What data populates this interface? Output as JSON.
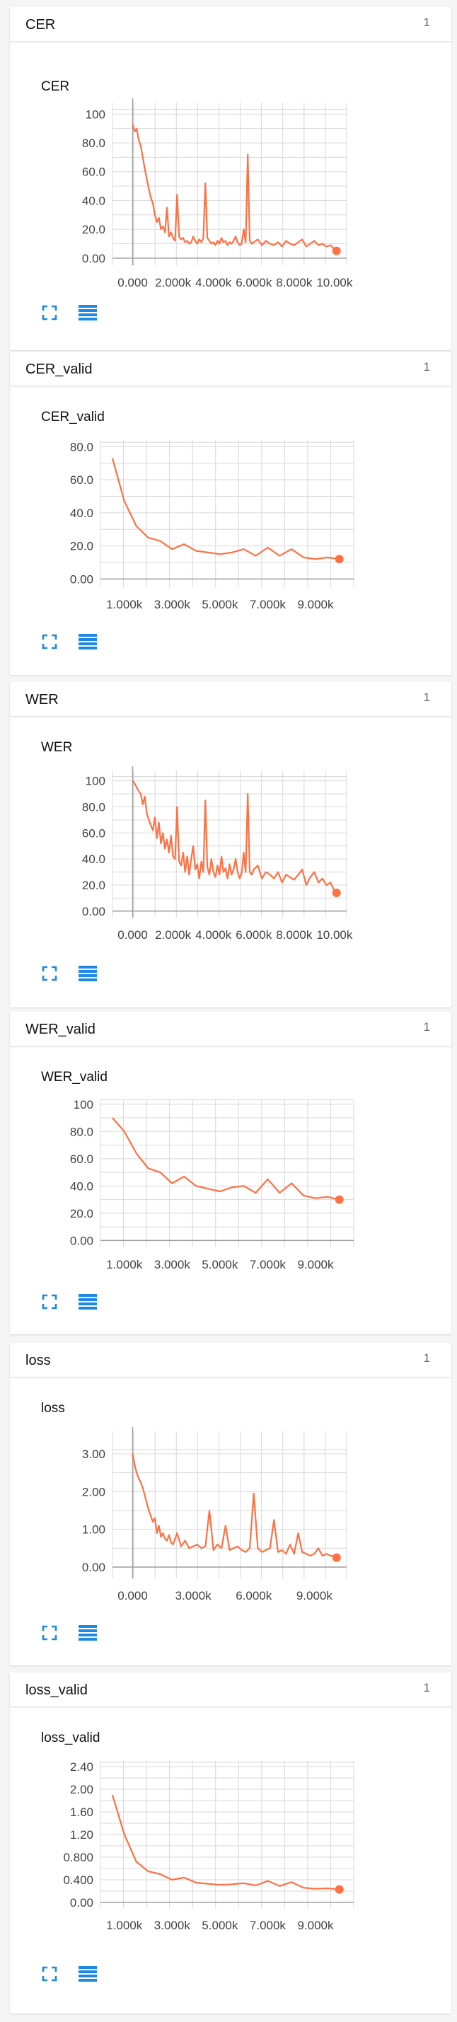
{
  "colors": {
    "line": "#ff7043",
    "grid": "#d8d8d8",
    "axis": "#9e9e9e",
    "icon": "#1e88e5"
  },
  "cards": [
    {
      "name": "CER",
      "count": "1",
      "chart_title": "CER",
      "icons": [
        "expand-icon",
        "list-icon"
      ]
    },
    {
      "name": "CER_valid",
      "count": "1",
      "chart_title": "CER_valid",
      "icons": [
        "expand-icon",
        "list-icon"
      ]
    },
    {
      "name": "WER",
      "count": "1",
      "chart_title": "WER",
      "icons": [
        "expand-icon",
        "list-icon"
      ]
    },
    {
      "name": "WER_valid",
      "count": "1",
      "chart_title": "WER_valid",
      "icons": [
        "expand-icon",
        "list-icon"
      ]
    },
    {
      "name": "loss",
      "count": "1",
      "chart_title": "loss",
      "icons": [
        "expand-icon",
        "list-icon"
      ]
    },
    {
      "name": "loss_valid",
      "count": "1",
      "chart_title": "loss_valid",
      "icons": [
        "expand-icon",
        "list-icon"
      ]
    }
  ],
  "chart_data": [
    {
      "type": "line",
      "title": "CER",
      "xlim": [
        -1000,
        10600
      ],
      "ylim": [
        -5,
        108
      ],
      "yticks": [
        0,
        20,
        40,
        60,
        80,
        100
      ],
      "ytick_labels": [
        "0.00",
        "20.0",
        "40.0",
        "60.0",
        "80.0",
        "100"
      ],
      "xticks": [
        0,
        2000,
        4000,
        6000,
        8000,
        10000
      ],
      "xtick_labels": [
        "0.000",
        "2.000k",
        "4.000k",
        "6.000k",
        "8.000k",
        "10.00k"
      ],
      "series": [
        {
          "x": [
            0,
            100,
            200,
            300,
            400,
            500,
            600,
            700,
            800,
            900,
            1000,
            1100,
            1200,
            1300,
            1400,
            1500,
            1600,
            1700,
            1800,
            1900,
            2000,
            2100,
            2200,
            2300,
            2400,
            2500,
            2600,
            2700,
            2800,
            2900,
            3000,
            3100,
            3200,
            3300,
            3400,
            3500,
            3600,
            3700,
            3800,
            3900,
            4000,
            4100,
            4200,
            4300,
            4400,
            4500,
            4600,
            4700,
            4800,
            4900,
            5000,
            5100,
            5200,
            5300,
            5400,
            5500,
            5600,
            5700,
            5800,
            5900,
            6000,
            6200,
            6400,
            6600,
            6800,
            7000,
            7200,
            7400,
            7600,
            7800,
            8000,
            8200,
            8400,
            8600,
            8800,
            9000,
            9200,
            9400,
            9600,
            9800,
            10000,
            10100
          ],
          "y": [
            93,
            88,
            90,
            82,
            78,
            70,
            62,
            55,
            48,
            42,
            38,
            30,
            25,
            28,
            20,
            22,
            18,
            35,
            15,
            18,
            14,
            12,
            44,
            15,
            13,
            14,
            11,
            12,
            10,
            11,
            15,
            12,
            10,
            13,
            11,
            14,
            52,
            14,
            12,
            10,
            11,
            9,
            12,
            10,
            14,
            11,
            12,
            9,
            11,
            10,
            12,
            15,
            11,
            9,
            10,
            20,
            11,
            72,
            12,
            10,
            11,
            13,
            9,
            12,
            10,
            9,
            11,
            8,
            12,
            10,
            9,
            11,
            13,
            8,
            10,
            12,
            9,
            10,
            8,
            9,
            6,
            5
          ]
        }
      ]
    },
    {
      "type": "line",
      "title": "CER_valid",
      "xlim": [
        0,
        10600
      ],
      "ylim": [
        -5,
        84
      ],
      "yticks": [
        0,
        20,
        40,
        60,
        80
      ],
      "ytick_labels": [
        "0.00",
        "20.0",
        "40.0",
        "60.0",
        "80.0"
      ],
      "xticks": [
        1000,
        3000,
        5000,
        7000,
        9000
      ],
      "xtick_labels": [
        "1.000k",
        "3.000k",
        "5.000k",
        "7.000k",
        "9.000k"
      ],
      "series": [
        {
          "x": [
            500,
            1000,
            1500,
            2000,
            2500,
            3000,
            3500,
            4000,
            4500,
            5000,
            5500,
            6000,
            6500,
            7000,
            7500,
            8000,
            8500,
            9000,
            9500,
            10000
          ],
          "y": [
            73,
            47,
            32,
            25,
            23,
            18,
            21,
            17,
            16,
            15,
            16,
            18,
            14,
            19,
            14,
            18,
            13,
            12,
            13,
            12
          ]
        }
      ]
    },
    {
      "type": "line",
      "title": "WER",
      "xlim": [
        -1000,
        10600
      ],
      "ylim": [
        -5,
        108
      ],
      "yticks": [
        0,
        20,
        40,
        60,
        80,
        100
      ],
      "ytick_labels": [
        "0.00",
        "20.0",
        "40.0",
        "60.0",
        "80.0",
        "100"
      ],
      "xticks": [
        0,
        2000,
        4000,
        6000,
        8000,
        10000
      ],
      "xtick_labels": [
        "0.000",
        "2.000k",
        "4.000k",
        "6.000k",
        "8.000k",
        "10.00k"
      ],
      "series": [
        {
          "x": [
            0,
            100,
            200,
            300,
            400,
            500,
            600,
            700,
            800,
            900,
            1000,
            1100,
            1200,
            1300,
            1400,
            1500,
            1600,
            1700,
            1800,
            1900,
            2000,
            2100,
            2200,
            2300,
            2400,
            2500,
            2600,
            2700,
            2800,
            2900,
            3000,
            3100,
            3200,
            3300,
            3400,
            3500,
            3600,
            3700,
            3800,
            3900,
            4000,
            4100,
            4200,
            4300,
            4400,
            4500,
            4600,
            4700,
            4800,
            4900,
            5000,
            5100,
            5200,
            5300,
            5400,
            5500,
            5600,
            5700,
            5800,
            5900,
            6000,
            6200,
            6400,
            6600,
            6800,
            7000,
            7200,
            7400,
            7600,
            7800,
            8000,
            8200,
            8400,
            8600,
            8800,
            9000,
            9200,
            9400,
            9600,
            9800,
            10000,
            10100
          ],
          "y": [
            100,
            98,
            95,
            92,
            90,
            82,
            88,
            75,
            70,
            66,
            62,
            72,
            56,
            68,
            52,
            60,
            48,
            55,
            45,
            58,
            42,
            40,
            80,
            38,
            35,
            45,
            30,
            42,
            28,
            40,
            50,
            32,
            36,
            25,
            38,
            30,
            85,
            34,
            28,
            40,
            30,
            26,
            35,
            28,
            42,
            30,
            33,
            25,
            36,
            28,
            32,
            40,
            30,
            25,
            29,
            45,
            30,
            90,
            30,
            28,
            32,
            35,
            25,
            30,
            28,
            25,
            30,
            22,
            28,
            26,
            24,
            28,
            32,
            20,
            26,
            30,
            22,
            25,
            20,
            22,
            15,
            14
          ]
        }
      ]
    },
    {
      "type": "line",
      "title": "WER_valid",
      "xlim": [
        0,
        10600
      ],
      "ylim": [
        -5,
        103
      ],
      "yticks": [
        0,
        20,
        40,
        60,
        80,
        100
      ],
      "ytick_labels": [
        "0.00",
        "20.0",
        "40.0",
        "60.0",
        "80.0",
        "100"
      ],
      "xticks": [
        1000,
        3000,
        5000,
        7000,
        9000
      ],
      "xtick_labels": [
        "1.000k",
        "3.000k",
        "5.000k",
        "7.000k",
        "9.000k"
      ],
      "series": [
        {
          "x": [
            500,
            1000,
            1500,
            2000,
            2500,
            3000,
            3500,
            4000,
            4500,
            5000,
            5500,
            6000,
            6500,
            7000,
            7500,
            8000,
            8500,
            9000,
            9500,
            10000
          ],
          "y": [
            90,
            80,
            64,
            53,
            50,
            42,
            47,
            40,
            38,
            36,
            39,
            40,
            35,
            45,
            35,
            42,
            33,
            31,
            32,
            30
          ]
        }
      ]
    },
    {
      "type": "line",
      "title": "loss",
      "xlim": [
        -1000,
        10600
      ],
      "ylim": [
        -0.3,
        3.6
      ],
      "yticks": [
        0,
        1,
        2,
        3
      ],
      "ytick_labels": [
        "0.00",
        "1.00",
        "2.00",
        "3.00"
      ],
      "xticks": [
        0,
        3000,
        6000,
        9000
      ],
      "xtick_labels": [
        "0.000",
        "3.000k",
        "6.000k",
        "9.000k"
      ],
      "series": [
        {
          "x": [
            0,
            100,
            200,
            300,
            400,
            500,
            600,
            700,
            800,
            900,
            1000,
            1100,
            1200,
            1300,
            1400,
            1500,
            1600,
            1700,
            1800,
            1900,
            2000,
            2200,
            2400,
            2600,
            2800,
            3000,
            3200,
            3400,
            3600,
            3800,
            4000,
            4200,
            4400,
            4600,
            4800,
            5000,
            5200,
            5400,
            5600,
            5800,
            6000,
            6200,
            6400,
            6600,
            6800,
            7000,
            7200,
            7400,
            7600,
            7800,
            8000,
            8200,
            8400,
            8600,
            8800,
            9000,
            9200,
            9400,
            9600,
            9800,
            10000,
            10100
          ],
          "y": [
            3.0,
            2.7,
            2.5,
            2.35,
            2.25,
            2.1,
            1.9,
            1.7,
            1.5,
            1.35,
            1.2,
            1.3,
            0.9,
            1.1,
            0.8,
            0.9,
            0.75,
            0.7,
            0.85,
            0.65,
            0.6,
            0.9,
            0.55,
            0.7,
            0.5,
            0.55,
            0.6,
            0.5,
            0.55,
            1.5,
            0.45,
            0.6,
            0.5,
            1.1,
            0.45,
            0.5,
            0.55,
            0.45,
            0.4,
            0.5,
            1.95,
            0.5,
            0.4,
            0.45,
            0.5,
            1.25,
            0.4,
            0.45,
            0.35,
            0.6,
            0.35,
            0.9,
            0.4,
            0.35,
            0.3,
            0.35,
            0.5,
            0.3,
            0.35,
            0.3,
            0.28,
            0.25
          ]
        }
      ]
    },
    {
      "type": "line",
      "title": "loss_valid",
      "xlim": [
        0,
        10600
      ],
      "ylim": [
        -0.1,
        2.5
      ],
      "yticks": [
        0,
        0.4,
        0.8,
        1.2,
        1.6,
        2.0,
        2.4
      ],
      "ytick_labels": [
        "0.00",
        "0.400",
        "0.800",
        "1.20",
        "1.60",
        "2.00",
        "2.40"
      ],
      "xticks": [
        1000,
        3000,
        5000,
        7000,
        9000
      ],
      "xtick_labels": [
        "1.000k",
        "3.000k",
        "5.000k",
        "7.000k",
        "9.000k"
      ],
      "series": [
        {
          "x": [
            500,
            1000,
            1500,
            2000,
            2500,
            3000,
            3500,
            4000,
            4500,
            5000,
            5500,
            6000,
            6500,
            7000,
            7500,
            8000,
            8500,
            9000,
            9500,
            10000
          ],
          "y": [
            1.9,
            1.2,
            0.72,
            0.55,
            0.5,
            0.4,
            0.44,
            0.35,
            0.33,
            0.31,
            0.32,
            0.34,
            0.3,
            0.38,
            0.29,
            0.36,
            0.26,
            0.24,
            0.25,
            0.23
          ]
        }
      ]
    }
  ]
}
